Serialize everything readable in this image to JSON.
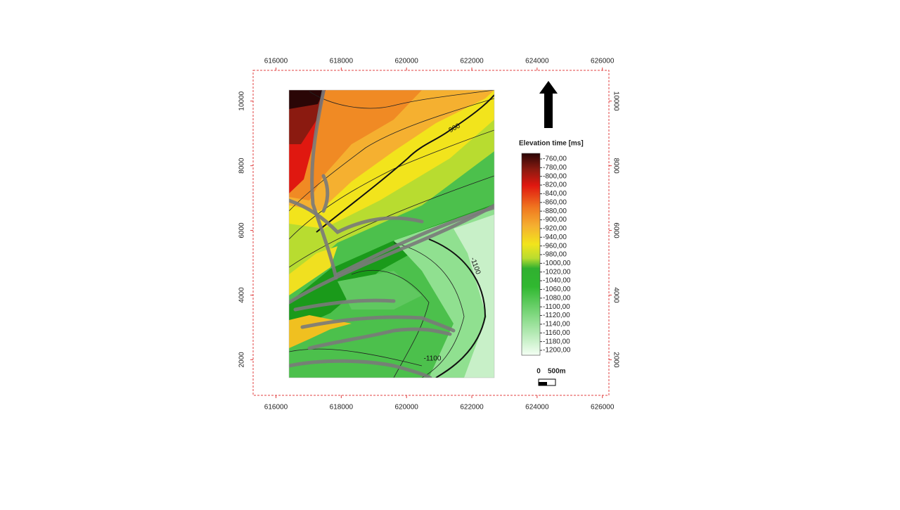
{
  "chart_data": {
    "type": "contour-map",
    "xlim": [
      615300,
      626200
    ],
    "ylim": [
      900,
      10950
    ],
    "xticks": [
      616000,
      618000,
      620000,
      622000,
      624000,
      626000
    ],
    "yticks": [
      2000,
      4000,
      6000,
      8000,
      10000
    ],
    "colorbar": {
      "title": "Elevation time [ms]",
      "ticks": [
        {
          "value": -760,
          "label": "-760,00"
        },
        {
          "value": -780,
          "label": "-780,00"
        },
        {
          "value": -800,
          "label": "-800,00"
        },
        {
          "value": -820,
          "label": "-820,00"
        },
        {
          "value": -840,
          "label": "-840,00"
        },
        {
          "value": -860,
          "label": "-860,00"
        },
        {
          "value": -880,
          "label": "-880,00"
        },
        {
          "value": -900,
          "label": "-900,00"
        },
        {
          "value": -920,
          "label": "-920,00"
        },
        {
          "value": -940,
          "label": "-940,00"
        },
        {
          "value": -960,
          "label": "-960,00"
        },
        {
          "value": -980,
          "label": "-980,00"
        },
        {
          "value": -1000,
          "label": "-1000,00"
        },
        {
          "value": -1020,
          "label": "-1020,00"
        },
        {
          "value": -1040,
          "label": "-1040,00"
        },
        {
          "value": -1060,
          "label": "-1060,00"
        },
        {
          "value": -1080,
          "label": "-1080,00"
        },
        {
          "value": -1100,
          "label": "-1100,00"
        },
        {
          "value": -1120,
          "label": "-1120,00"
        },
        {
          "value": -1140,
          "label": "-1140,00"
        },
        {
          "value": -1160,
          "label": "-1160,00"
        },
        {
          "value": -1180,
          "label": "-1180,00"
        },
        {
          "value": -1200,
          "label": "-1200,00"
        }
      ]
    },
    "contour_labels": [
      -900,
      -1100,
      -1100
    ],
    "scale_bar": [
      "0",
      "500m"
    ]
  }
}
